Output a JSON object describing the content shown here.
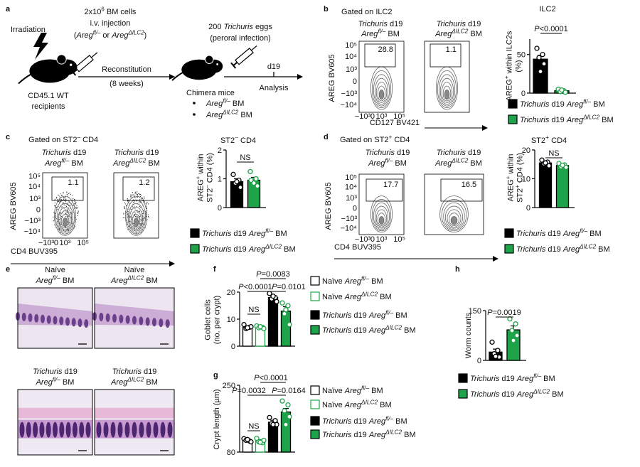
{
  "panel_labels": [
    "a",
    "b",
    "c",
    "d",
    "e",
    "f",
    "g",
    "h"
  ],
  "schematic": {
    "irradiation": "Irradiation",
    "cells": [
      "2x10",
      {
        "sup": "6"
      },
      " BM cells"
    ],
    "injection": "i.v. injection",
    "genotypes": [
      "(",
      {
        "i": "Areg"
      },
      {
        "sup": "fl/–"
      },
      " or ",
      {
        "i": "Areg"
      },
      {
        "sup": "ΔILC2"
      },
      ")"
    ],
    "recipients": [
      "CD45.1 WT",
      "recipients"
    ],
    "reconstitution": [
      "Reconstitution",
      "(8 weeks)"
    ],
    "eggs": [
      "200 ",
      {
        "i": "Trichuris"
      },
      " eggs"
    ],
    "route": "(peroral infection)",
    "day": "d19",
    "analysis": "Analysis",
    "chimera": "Chimera mice",
    "groups": [
      [
        {
          "i": "Areg"
        },
        {
          "sup": "fl/–"
        },
        " BM"
      ],
      [
        {
          "i": "Areg"
        },
        {
          "sup": "ΔILC2"
        },
        " BM"
      ]
    ]
  },
  "flow": [
    {
      "gate": "Gated on ILC2",
      "x_label": "CD127 BV421",
      "y_label": "AREG BV605",
      "yticks": [
        "10⁵",
        "10⁴",
        "10³",
        "0",
        "−10³",
        "−10⁴"
      ],
      "xticks": [
        "−10³",
        "0",
        "10³",
        "10⁵"
      ],
      "plots": [
        {
          "header": [
            [
              {
                "i": "Trichuris"
              },
              " d19"
            ],
            [
              {
                "i": "Areg"
              },
              {
                "sup": "fl/–"
              },
              " BM"
            ]
          ],
          "gate_value": "28.8",
          "color": "#000000"
        },
        {
          "header": [
            [
              {
                "i": "Trichuris"
              },
              " d19"
            ],
            [
              {
                "i": "Areg"
              },
              {
                "sup": "ΔILC2"
              },
              " BM"
            ]
          ],
          "gate_value": "1.1",
          "color": "#1fa34a"
        }
      ]
    },
    {
      "gate": [
        "Gated on ST2",
        {
          "sup": "–"
        },
        " CD4"
      ],
      "x_label": "CD4 BUV395",
      "y_label": "AREG BV605",
      "yticks": [
        "10⁵",
        "10⁴",
        "10³",
        "0",
        "−10³",
        "−10⁴"
      ],
      "xticks": [
        "−10³",
        "0",
        "10³",
        "10⁵"
      ],
      "plots": [
        {
          "header": [
            [
              {
                "i": "Trichuris"
              },
              " d19"
            ],
            [
              {
                "i": "Areg"
              },
              {
                "sup": "fl/–"
              },
              " BM"
            ]
          ],
          "gate_value": "1.1",
          "color": "#000000"
        },
        {
          "header": [
            [
              {
                "i": "Trichuris"
              },
              " d19"
            ],
            [
              {
                "i": "Areg"
              },
              {
                "sup": "ΔILC2"
              },
              " BM"
            ]
          ],
          "gate_value": "1.2",
          "color": "#000000"
        }
      ]
    },
    {
      "gate": [
        "Gated on ST2",
        {
          "sup": "+"
        },
        " CD4"
      ],
      "x_label": "CD4 BUV395",
      "y_label": "AREG BV605",
      "yticks": [
        "10⁵",
        "10⁴",
        "10³",
        "0",
        "−10³",
        "−10⁴"
      ],
      "xticks": [
        "−10³",
        "0",
        "10³",
        "10⁵"
      ],
      "plots": [
        {
          "header": [
            [
              {
                "i": "Trichuris"
              },
              " d19"
            ],
            [
              {
                "i": "Areg"
              },
              {
                "sup": "fl/–"
              },
              " BM"
            ]
          ],
          "gate_value": "17.7",
          "color": "#000000"
        },
        {
          "header": [
            [
              {
                "i": "Trichuris"
              },
              " d19"
            ],
            [
              {
                "i": "Areg"
              },
              {
                "sup": "ΔILC2"
              },
              " BM"
            ]
          ],
          "gate_value": "16.5",
          "color": "#1fa34a"
        }
      ]
    }
  ],
  "histology": [
    {
      "header": [
        "Naïve",
        [
          {
            "i": "Areg"
          },
          {
            "sup": "fl/–"
          },
          " BM"
        ]
      ]
    },
    {
      "header": [
        "Naïve",
        [
          {
            "i": "Areg"
          },
          {
            "sup": "ΔILC2"
          },
          " BM"
        ]
      ]
    },
    {
      "header": [
        [
          {
            "i": "Trichuris"
          },
          " d19"
        ],
        [
          {
            "i": "Areg"
          },
          {
            "sup": "fl/–"
          },
          " BM"
        ]
      ]
    },
    {
      "header": [
        [
          {
            "i": "Trichuris"
          },
          " d19"
        ],
        [
          {
            "i": "Areg"
          },
          {
            "sup": "ΔILC2"
          },
          " BM"
        ]
      ]
    }
  ],
  "chart_data": [
    {
      "type": "bar",
      "title": "ILC2",
      "ylabel": [
        [
          "AREG",
          {
            "sup": "+"
          },
          " within ILC2s"
        ],
        "(%)"
      ],
      "ylim": [
        0,
        70
      ],
      "yticks": [
        0,
        50
      ],
      "series": [
        {
          "name": [
            {
              "i": "Trichuris"
            },
            " d19 ",
            {
              "i": "Areg"
            },
            {
              "sup": "fl/–"
            },
            " BM"
          ],
          "color": "#000000",
          "filled": true,
          "values": [
            44
          ],
          "errors": [
            5
          ],
          "points": [
            58,
            50,
            46,
            38,
            28
          ]
        },
        {
          "name": [
            {
              "i": "Trichuris"
            },
            " d19 ",
            {
              "i": "Areg"
            },
            {
              "sup": "ΔILC2"
            },
            " BM"
          ],
          "color": "#1fa34a",
          "filled": true,
          "values": [
            3
          ],
          "errors": [
            0.8
          ],
          "points": [
            5,
            3,
            2,
            1,
            4
          ]
        }
      ],
      "annotations": [
        [
          {
            "i": "P"
          },
          "<0.0001"
        ]
      ]
    },
    {
      "type": "bar",
      "title": [
        "ST2",
        {
          "sup": "–"
        },
        " CD4"
      ],
      "ylabel": [
        [
          "AREG",
          {
            "sup": "+"
          },
          " within"
        ],
        [
          "ST2",
          {
            "sup": "–"
          },
          " CD4 (%)"
        ]
      ],
      "ylim": [
        0,
        2
      ],
      "yticks": [
        0,
        1,
        2
      ],
      "series": [
        {
          "name": [
            {
              "i": "Trichuris"
            },
            " d19 ",
            {
              "i": "Areg"
            },
            {
              "sup": "fl/–"
            },
            " BM"
          ],
          "color": "#000000",
          "filled": true,
          "values": [
            0.9
          ],
          "errors": [
            0.1
          ],
          "points": [
            1.15,
            0.95,
            0.85,
            0.7,
            0.9
          ]
        },
        {
          "name": [
            {
              "i": "Trichuris"
            },
            " d19 ",
            {
              "i": "Areg"
            },
            {
              "sup": "ΔILC2"
            },
            " BM"
          ],
          "color": "#1fa34a",
          "filled": true,
          "values": [
            0.95
          ],
          "errors": [
            0.1
          ],
          "points": [
            1.25,
            1.0,
            0.9,
            0.75,
            0.85,
            0.95
          ]
        }
      ],
      "annotations": [
        "NS"
      ]
    },
    {
      "type": "bar",
      "title": [
        "ST2",
        {
          "sup": "+"
        },
        " CD4"
      ],
      "ylabel": [
        [
          "AREG",
          {
            "sup": "+"
          },
          " within"
        ],
        [
          "ST2",
          {
            "sup": "+"
          },
          " CD4 (%)"
        ]
      ],
      "ylim": [
        0,
        20
      ],
      "yticks": [
        0,
        10,
        20
      ],
      "series": [
        {
          "name": [
            {
              "i": "Trichuris"
            },
            " d19 ",
            {
              "i": "Areg"
            },
            {
              "sup": "fl/–"
            },
            " BM"
          ],
          "color": "#000000",
          "filled": true,
          "values": [
            15.5
          ],
          "errors": [
            0.6
          ],
          "points": [
            16.5,
            15.8,
            15.2,
            14.5,
            15.5
          ]
        },
        {
          "name": [
            {
              "i": "Trichuris"
            },
            " d19 ",
            {
              "i": "Areg"
            },
            {
              "sup": "ΔILC2"
            },
            " BM"
          ],
          "color": "#1fa34a",
          "filled": true,
          "values": [
            14.6
          ],
          "errors": [
            0.4
          ],
          "points": [
            15.3,
            14.8,
            14.2,
            14.0,
            14.7
          ]
        }
      ],
      "annotations": [
        "NS"
      ]
    },
    {
      "type": "bar",
      "ylabel": [
        "Goblet cells",
        "(no. per crypt)"
      ],
      "ylim": [
        0,
        20
      ],
      "yticks": [
        0,
        10,
        20
      ],
      "series": [
        {
          "name": [
            "Naïve ",
            {
              "i": "Areg"
            },
            {
              "sup": "fl/–"
            },
            " BM"
          ],
          "color": "#000000",
          "filled": false,
          "values": [
            7
          ],
          "errors": [
            0.5
          ],
          "points": [
            8,
            7,
            6.5,
            7.2,
            6.8
          ]
        },
        {
          "name": [
            "Naïve ",
            {
              "i": "Areg"
            },
            {
              "sup": "ΔILC2"
            },
            " BM"
          ],
          "color": "#1fa34a",
          "filled": false,
          "values": [
            7
          ],
          "errors": [
            0.3
          ],
          "points": [
            7.5,
            7,
            6.8,
            6.5,
            7.2
          ]
        },
        {
          "name": [
            {
              "i": "Trichuris"
            },
            " d19 ",
            {
              "i": "Areg"
            },
            {
              "sup": "fl/–"
            },
            " BM"
          ],
          "color": "#000000",
          "filled": true,
          "values": [
            18
          ],
          "errors": [
            0.8
          ],
          "points": [
            19.5,
            18,
            17.5,
            16.5,
            18.5
          ]
        },
        {
          "name": [
            {
              "i": "Trichuris"
            },
            " d19 ",
            {
              "i": "Areg"
            },
            {
              "sup": "ΔILC2"
            },
            " BM"
          ],
          "color": "#1fa34a",
          "filled": true,
          "values": [
            13
          ],
          "errors": [
            1.6
          ],
          "points": [
            16,
            15,
            12,
            8,
            13.5
          ]
        }
      ],
      "annotations": [
        "NS",
        [
          {
            "i": "P"
          },
          "<0.0001"
        ],
        [
          {
            "i": "P"
          },
          "=0.0101"
        ],
        [
          {
            "i": "P"
          },
          "=0.0083"
        ]
      ]
    },
    {
      "type": "bar",
      "ylabel": [
        "Crypt length (µm)"
      ],
      "ylim": [
        80,
        250
      ],
      "yticks": [
        80,
        250
      ],
      "series": [
        {
          "name": [
            "Naïve ",
            {
              "i": "Areg"
            },
            {
              "sup": "fl/–"
            },
            " BM"
          ],
          "color": "#000000",
          "filled": false,
          "values": [
            110
          ],
          "errors": [
            3
          ],
          "points": [
            114,
            108,
            110,
            106,
            112
          ]
        },
        {
          "name": [
            "Naïve ",
            {
              "i": "Areg"
            },
            {
              "sup": "ΔILC2"
            },
            " BM"
          ],
          "color": "#1fa34a",
          "filled": false,
          "values": [
            108
          ],
          "errors": [
            4
          ],
          "points": [
            115,
            104,
            106,
            110,
            105
          ]
        },
        {
          "name": [
            {
              "i": "Trichuris"
            },
            " d19 ",
            {
              "i": "Areg"
            },
            {
              "sup": "fl/–"
            },
            " BM"
          ],
          "color": "#000000",
          "filled": true,
          "values": [
            156
          ],
          "errors": [
            5
          ],
          "points": [
            168,
            160,
            152,
            150,
            150
          ]
        },
        {
          "name": [
            {
              "i": "Trichuris"
            },
            " d19 ",
            {
              "i": "Areg"
            },
            {
              "sup": "ΔILC2"
            },
            " BM"
          ],
          "color": "#1fa34a",
          "filled": true,
          "values": [
            182
          ],
          "errors": [
            9
          ],
          "points": [
            210,
            200,
            185,
            170,
            150
          ]
        }
      ],
      "annotations": [
        "NS",
        [
          {
            "i": "P"
          },
          "=0.0032"
        ],
        [
          {
            "i": "P"
          },
          "=0.0164"
        ],
        [
          {
            "i": "P"
          },
          "<0.0001"
        ]
      ]
    },
    {
      "type": "bar",
      "ylabel": [
        "Worm counts"
      ],
      "ylim": [
        0,
        150
      ],
      "yticks": [
        0,
        150
      ],
      "series": [
        {
          "name": [
            {
              "i": "Trichuris"
            },
            " d19 ",
            {
              "i": "Areg"
            },
            {
              "sup": "fl/–"
            },
            " BM"
          ],
          "color": "#000000",
          "filled": true,
          "values": [
            25
          ],
          "errors": [
            9
          ],
          "points": [
            55,
            30,
            20,
            10,
            12
          ]
        },
        {
          "name": [
            {
              "i": "Trichuris"
            },
            " d19 ",
            {
              "i": "Areg"
            },
            {
              "sup": "ΔILC2"
            },
            " BM"
          ],
          "color": "#1fa34a",
          "filled": true,
          "values": [
            92
          ],
          "errors": [
            12
          ],
          "points": [
            125,
            110,
            90,
            75,
            60
          ]
        }
      ],
      "annotations": [
        [
          {
            "i": "P"
          },
          "=0.0019"
        ]
      ]
    }
  ]
}
